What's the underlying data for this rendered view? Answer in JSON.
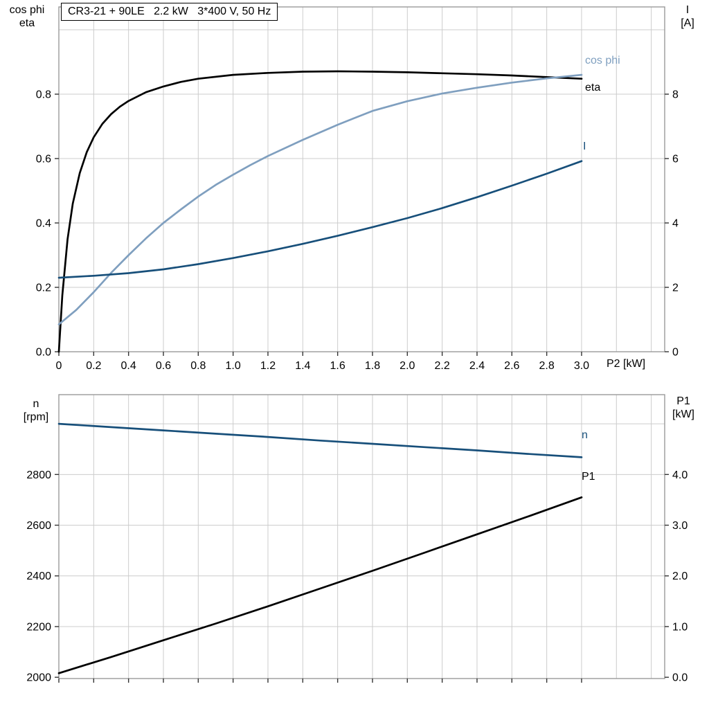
{
  "colors": {
    "grid": "#cccccc",
    "frame": "#999999",
    "tick": "#333333",
    "tick_text": "#000000"
  },
  "chart_data": [
    {
      "type": "line",
      "title": "CR3-21 + 90LE   2.2 kW   3*400 V, 50 Hz",
      "xlabel": "P2 [kW]",
      "xlim": [
        0,
        3.477
      ],
      "x_tick_values": [
        0,
        0.2,
        0.4,
        0.6,
        0.8,
        1.0,
        1.2,
        1.4,
        1.6,
        1.8,
        2.0,
        2.2,
        2.4,
        2.6,
        2.8,
        3.0
      ],
      "x_tick_labels": [
        "0",
        "0.2",
        "0.4",
        "0.6",
        "0.8",
        "1.0",
        "1.2",
        "1.4",
        "1.6",
        "1.8",
        "2.0",
        "2.2",
        "2.4",
        "2.6",
        "2.8",
        "3.0"
      ],
      "x_grid": [
        0.2,
        0.4,
        0.6,
        0.8,
        1.0,
        1.2,
        1.4,
        1.6,
        1.8,
        2.0,
        2.2,
        2.4,
        2.6,
        2.8,
        3.0,
        3.2,
        3.4
      ],
      "left_axis": {
        "label_lines": [
          "cos phi",
          "eta"
        ],
        "lim": [
          0,
          1.071
        ],
        "ticks": [
          0,
          0.2,
          0.4,
          0.6,
          0.8
        ],
        "tick_labels": [
          "0.0",
          "0.2",
          "0.4",
          "0.6",
          "0.8"
        ],
        "grid": [
          0.2,
          0.4,
          0.6,
          0.8,
          1.0
        ]
      },
      "right_axis": {
        "label_lines": [
          "I",
          "[A]"
        ],
        "lim": [
          0,
          10.71
        ],
        "ticks": [
          0,
          2,
          4,
          6,
          8
        ],
        "tick_labels": [
          "0",
          "2",
          "4",
          "6",
          "8"
        ]
      },
      "series": [
        {
          "id": "eta",
          "name": "eta",
          "axis": "left",
          "color": "#000000",
          "x": [
            0,
            0.02,
            0.05,
            0.08,
            0.12,
            0.16,
            0.2,
            0.25,
            0.3,
            0.35,
            0.4,
            0.5,
            0.6,
            0.7,
            0.8,
            1.0,
            1.2,
            1.4,
            1.6,
            1.8,
            2.0,
            2.2,
            2.4,
            2.6,
            2.8,
            3.0
          ],
          "y": [
            0,
            0.175,
            0.35,
            0.46,
            0.555,
            0.62,
            0.666,
            0.708,
            0.738,
            0.761,
            0.779,
            0.806,
            0.824,
            0.838,
            0.848,
            0.86,
            0.866,
            0.87,
            0.871,
            0.87,
            0.868,
            0.865,
            0.862,
            0.858,
            0.853,
            0.848
          ]
        },
        {
          "id": "cos_phi",
          "name": "cos phi",
          "axis": "left",
          "color": "#7f9fbf",
          "x": [
            0,
            0.1,
            0.2,
            0.3,
            0.4,
            0.5,
            0.6,
            0.7,
            0.8,
            0.9,
            1.0,
            1.1,
            1.2,
            1.4,
            1.6,
            1.8,
            2.0,
            2.2,
            2.4,
            2.6,
            2.8,
            3.0
          ],
          "y": [
            0.085,
            0.13,
            0.185,
            0.245,
            0.3,
            0.352,
            0.4,
            0.442,
            0.482,
            0.518,
            0.55,
            0.58,
            0.608,
            0.658,
            0.705,
            0.748,
            0.778,
            0.802,
            0.82,
            0.836,
            0.849,
            0.86
          ]
        },
        {
          "id": "current",
          "name": "I",
          "axis": "right",
          "color": "#174f7a",
          "x": [
            0,
            0.2,
            0.4,
            0.6,
            0.8,
            1.0,
            1.2,
            1.4,
            1.6,
            1.8,
            2.0,
            2.2,
            2.4,
            2.6,
            2.8,
            3.0
          ],
          "y": [
            2.3,
            2.36,
            2.44,
            2.56,
            2.72,
            2.91,
            3.12,
            3.35,
            3.6,
            3.87,
            4.15,
            4.46,
            4.8,
            5.16,
            5.53,
            5.92
          ]
        }
      ]
    },
    {
      "type": "line",
      "title": "",
      "xlabel": "",
      "xlim": [
        0,
        3.477
      ],
      "x_tick_values": [
        0,
        0.2,
        0.4,
        0.6,
        0.8,
        1.0,
        1.2,
        1.4,
        1.6,
        1.8,
        2.0,
        2.2,
        2.4,
        2.6,
        2.8,
        3.0
      ],
      "x_tick_labels": null,
      "x_grid": [
        0.2,
        0.4,
        0.6,
        0.8,
        1.0,
        1.2,
        1.4,
        1.6,
        1.8,
        2.0,
        2.2,
        2.4,
        2.6,
        2.8,
        3.0,
        3.2,
        3.4
      ],
      "left_axis": {
        "label_lines": [
          "n",
          "[rpm]"
        ],
        "lim": [
          1995,
          3115
        ],
        "ticks": [
          2000,
          2200,
          2400,
          2600,
          2800
        ],
        "tick_labels": [
          "2000",
          "2200",
          "2400",
          "2600",
          "2800"
        ],
        "grid": [
          2200,
          2400,
          2600,
          2800,
          3000
        ]
      },
      "right_axis": {
        "label_lines": [
          "P1",
          "[kW]"
        ],
        "lim": [
          -0.025,
          5.575
        ],
        "ticks": [
          0,
          1,
          2,
          3,
          4
        ],
        "tick_labels": [
          "0.0",
          "1.0",
          "2.0",
          "3.0",
          "4.0"
        ]
      },
      "series": [
        {
          "id": "speed",
          "name": "n",
          "axis": "left",
          "color": "#174f7a",
          "x": [
            0,
            0.3,
            0.6,
            0.9,
            1.2,
            1.5,
            1.8,
            2.1,
            2.4,
            2.7,
            3.0
          ],
          "y": [
            3000,
            2987,
            2974,
            2961,
            2948,
            2934,
            2921,
            2908,
            2895,
            2881,
            2868
          ]
        },
        {
          "id": "p1",
          "name": "P1",
          "axis": "right",
          "color": "#000000",
          "x": [
            0,
            0.3,
            0.6,
            0.9,
            1.2,
            1.5,
            1.8,
            2.1,
            2.4,
            2.7,
            3.0
          ],
          "y": [
            0.08,
            0.4,
            0.73,
            1.06,
            1.4,
            1.75,
            2.1,
            2.46,
            2.82,
            3.18,
            3.55
          ]
        }
      ]
    }
  ]
}
